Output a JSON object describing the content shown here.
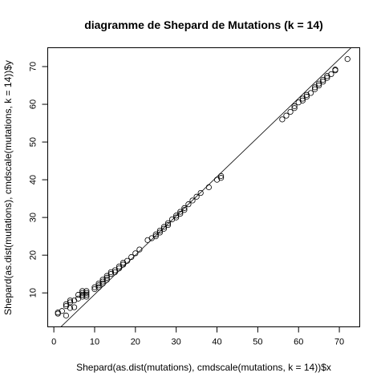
{
  "chart_data": {
    "type": "scatter",
    "title": "diagramme de Shepard de Mutations (k = 14)",
    "xlabel": "Shepard(as.dist(mutations), cmdscale(mutations, k = 14))$x",
    "ylabel": "Shepard(as.dist(mutations), cmdscale(mutations, k = 14))$y",
    "xlim": [
      -1.5,
      75
    ],
    "ylim": [
      1,
      75
    ],
    "x_ticks": [
      0,
      10,
      20,
      30,
      40,
      50,
      60,
      70
    ],
    "y_ticks": [
      10,
      20,
      30,
      40,
      50,
      60,
      70
    ],
    "grid": false,
    "reference_line": {
      "slope": 1.04,
      "intercept": -0.8
    },
    "x": [
      1,
      1,
      2,
      3,
      3,
      3,
      4,
      4,
      4,
      5,
      5,
      6,
      6,
      7,
      7,
      7,
      7,
      8,
      8,
      8,
      8,
      10,
      10,
      11,
      11,
      11,
      12,
      12,
      12,
      13,
      13,
      13,
      14,
      14,
      15,
      15,
      16,
      16,
      17,
      17,
      18,
      19,
      20,
      21,
      23,
      24,
      25,
      25,
      26,
      26,
      27,
      27,
      28,
      28,
      29,
      30,
      30,
      31,
      31,
      32,
      32,
      33,
      34,
      35,
      36,
      38,
      40,
      41,
      41,
      56,
      57,
      58,
      59,
      59,
      60,
      61,
      61,
      62,
      62,
      63,
      64,
      64,
      65,
      65,
      66,
      66,
      67,
      67,
      68,
      69,
      69,
      72
    ],
    "y": [
      4.5,
      4.8,
      5.2,
      4.0,
      6.5,
      7.0,
      6.0,
      7.5,
      8.0,
      6.2,
      8.0,
      8.5,
      9.5,
      9.0,
      9.5,
      10.0,
      10.5,
      9.0,
      9.5,
      10.0,
      10.5,
      11.0,
      11.5,
      11.5,
      12.0,
      12.5,
      12.5,
      13.0,
      13.5,
      13.5,
      14.0,
      14.5,
      15.0,
      15.5,
      15.5,
      16.0,
      16.5,
      17.0,
      17.5,
      18.0,
      18.5,
      19.5,
      20.5,
      21.5,
      24.0,
      24.5,
      25.0,
      25.5,
      26.0,
      26.5,
      27.0,
      27.5,
      28.0,
      28.5,
      29.5,
      30.0,
      30.5,
      31.0,
      31.5,
      32.0,
      32.5,
      33.5,
      34.5,
      35.5,
      36.5,
      38.0,
      40.0,
      40.5,
      41.0,
      56.0,
      57.0,
      58.0,
      59.0,
      59.5,
      60.5,
      61.0,
      61.5,
      62.0,
      62.5,
      63.0,
      64.0,
      64.5,
      65.0,
      65.5,
      66.0,
      66.5,
      67.0,
      67.5,
      68.0,
      69.0,
      69.2,
      72.0
    ]
  }
}
